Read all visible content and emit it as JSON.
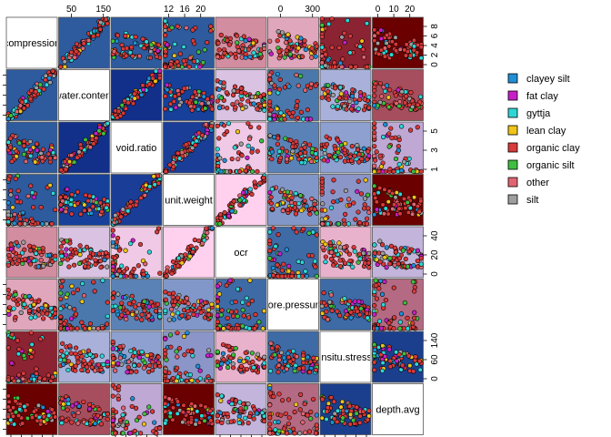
{
  "chart_data": {
    "type": "scatter",
    "variables": [
      {
        "id": "compression",
        "label": "compression"
      },
      {
        "id": "water_content",
        "label": "water.content"
      },
      {
        "id": "void_ratio",
        "label": "void.ratio"
      },
      {
        "id": "unit_weight",
        "label": "unit.weight"
      },
      {
        "id": "ocr",
        "label": "ocr"
      },
      {
        "id": "pore_pressure",
        "label": "pore.pressure"
      },
      {
        "id": "insitu_stress",
        "label": "insitu.stress"
      },
      {
        "id": "depth_avg",
        "label": "depth.avg"
      }
    ],
    "top_axis": [
      {
        "col": 1,
        "ticks": [
          "50",
          "150"
        ]
      },
      {
        "col": 3,
        "ticks": [
          "12",
          "16",
          "20"
        ]
      },
      {
        "col": 5,
        "ticks": [
          "0",
          "300"
        ]
      },
      {
        "col": 7,
        "ticks": [
          "0",
          "10",
          "20"
        ]
      }
    ],
    "right_axis": [
      {
        "row": 0,
        "ticks": [
          "0",
          "2",
          "4",
          "6",
          "8"
        ]
      },
      {
        "row": 2,
        "ticks": [
          "1",
          "3",
          "5"
        ]
      },
      {
        "row": 4,
        "ticks": [
          "0",
          "20",
          "40"
        ]
      },
      {
        "row": 6,
        "ticks": [
          "0",
          "60",
          "140"
        ]
      }
    ],
    "legend": {
      "position": "right",
      "entries": [
        {
          "label": "clayey silt",
          "color": "#1f8fd6"
        },
        {
          "label": "fat clay",
          "color": "#c71fc7"
        },
        {
          "label": "gyttja",
          "color": "#2fd6d6"
        },
        {
          "label": "lean clay",
          "color": "#f0c419"
        },
        {
          "label": "organic clay",
          "color": "#d93a3a"
        },
        {
          "label": "organic silt",
          "color": "#3fbf3f"
        },
        {
          "label": "other",
          "color": "#e06570"
        },
        {
          "label": "silt",
          "color": "#9e9e9e"
        }
      ]
    },
    "correlation_colors": [
      [
        "#ffffff",
        "#2e5a9e",
        "#2e5a9e",
        "#2e5a9e",
        "#d28da0",
        "#e0a6bb",
        "#8b2332",
        "#6b0000"
      ],
      [
        "#2e5a9e",
        "#ffffff",
        "#12308a",
        "#16409a",
        "#d9c2e2",
        "#4a78ac",
        "#a9b1da",
        "#a64e5e"
      ],
      [
        "#2e5a9e",
        "#12308a",
        "#ffffff",
        "#1a3d98",
        "#f0c9e6",
        "#5b82b6",
        "#8ea0cf",
        "#c0a8d4"
      ],
      [
        "#2e5a9e",
        "#16409a",
        "#1a3d98",
        "#ffffff",
        "#ffd1ee",
        "#8197c9",
        "#8b95c8",
        "#6b0000"
      ],
      [
        "#d28da0",
        "#d9c2e2",
        "#f0c9e6",
        "#ffd1ee",
        "#ffffff",
        "#3e6aa6",
        "#e8b2cc",
        "#c2b4da"
      ],
      [
        "#e0a6bb",
        "#4a78ac",
        "#5b82b6",
        "#8197c9",
        "#3e6aa6",
        "#ffffff",
        "#3e6aa6",
        "#b46a82"
      ],
      [
        "#8b2332",
        "#a9b1da",
        "#8ea0cf",
        "#8b95c8",
        "#e8b2cc",
        "#3e6aa6",
        "#ffffff",
        "#1b3f8c"
      ],
      [
        "#6b0000",
        "#a64e5e",
        "#c0a8d4",
        "#6b0000",
        "#c2b4da",
        "#b46a82",
        "#1b3f8c",
        "#ffffff"
      ]
    ]
  }
}
